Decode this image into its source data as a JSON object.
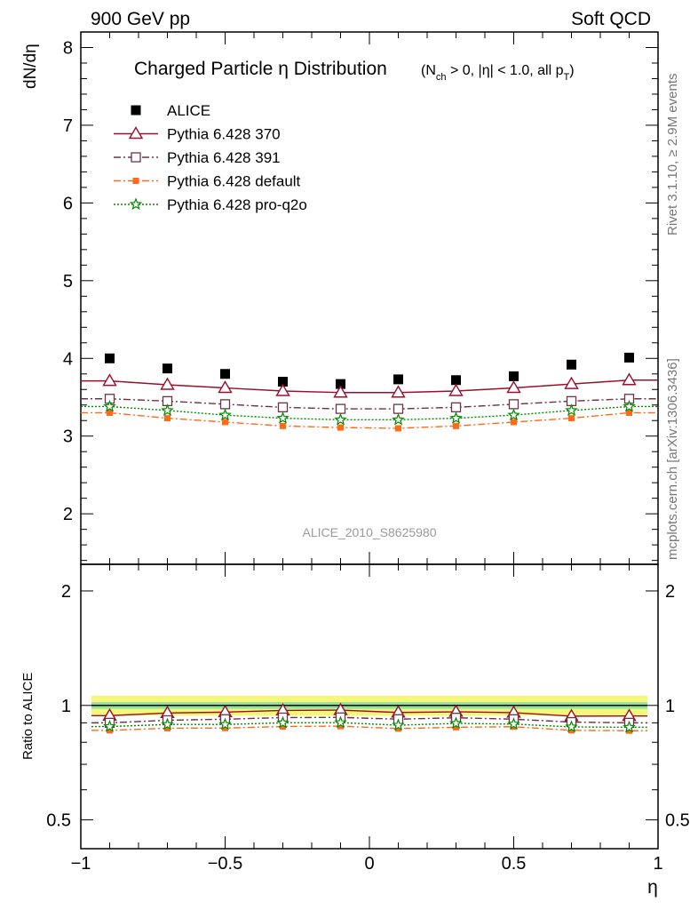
{
  "header": {
    "left": "900 GeV pp",
    "right": "Soft QCD"
  },
  "side": {
    "rivet": "Rivet 3.1.10, ≥ 2.9M events",
    "source": "mcplots.cern.ch [arXiv:1306.3436]"
  },
  "title": {
    "main": "Charged Particle η Distribution",
    "cuts": "(N_ch > 0, |η| < 1.0, all p_T)"
  },
  "watermark": "ALICE_2010_S8625980",
  "axes": {
    "top_ylabel": "dN/dη",
    "bottom_ylabel": "Ratio to ALICE",
    "xlabel": "η"
  },
  "chart_data": [
    {
      "type": "scatter",
      "panel": "main",
      "x": [
        -0.9,
        -0.7,
        -0.5,
        -0.3,
        -0.1,
        0.1,
        0.3,
        0.5,
        0.7,
        0.9
      ],
      "xlim": [
        -1.0,
        1.0
      ],
      "ylim": [
        1.35,
        8.2
      ],
      "xticks": [
        -1,
        -0.5,
        0,
        0.5,
        1
      ],
      "xtick_labels": [
        "−1",
        "−0.5",
        "0",
        "0.5",
        "1"
      ],
      "yticks": [
        2,
        3,
        4,
        5,
        6,
        7,
        8
      ],
      "ytick_labels": [
        "2",
        "3",
        "4",
        "5",
        "6",
        "7",
        "8"
      ],
      "legend_position": "top-left",
      "series": [
        {
          "name": "ALICE",
          "marker": "square-filled",
          "line": "none",
          "color": "#000000",
          "values": [
            4.0,
            3.87,
            3.8,
            3.7,
            3.67,
            3.73,
            3.72,
            3.77,
            3.92,
            4.01
          ]
        },
        {
          "name": "Pythia 6.428 370",
          "marker": "triangle-open",
          "line": "solid",
          "color": "#99102a",
          "values": [
            3.71,
            3.66,
            3.62,
            3.58,
            3.56,
            3.56,
            3.58,
            3.62,
            3.67,
            3.72
          ]
        },
        {
          "name": "Pythia 6.428 391",
          "marker": "square-open",
          "line": "dashdot",
          "color": "#6b3346",
          "values": [
            3.48,
            3.45,
            3.41,
            3.37,
            3.35,
            3.35,
            3.37,
            3.41,
            3.45,
            3.48
          ]
        },
        {
          "name": "Pythia 6.428 default",
          "marker": "square-filled-small",
          "line": "dashdot",
          "color": "#ff6a1a",
          "values": [
            3.3,
            3.23,
            3.18,
            3.13,
            3.11,
            3.1,
            3.13,
            3.18,
            3.23,
            3.3
          ]
        },
        {
          "name": "Pythia 6.428 pro-q2o",
          "marker": "star",
          "line": "dotted",
          "color": "#008a00",
          "values": [
            3.38,
            3.33,
            3.27,
            3.23,
            3.21,
            3.21,
            3.23,
            3.27,
            3.33,
            3.38
          ]
        }
      ]
    },
    {
      "type": "line",
      "panel": "ratio",
      "x": [
        -0.9,
        -0.7,
        -0.5,
        -0.3,
        -0.1,
        0.1,
        0.3,
        0.5,
        0.7,
        0.9
      ],
      "xlim": [
        -1.0,
        1.0
      ],
      "ylim": [
        0.42,
        2.35
      ],
      "yticks": [
        0.5,
        1,
        2
      ],
      "ytick_labels": [
        "0.5",
        "1",
        "2"
      ],
      "reference_band": {
        "center": 1.0,
        "inner": 0.02,
        "outer": 0.06
      },
      "series": [
        {
          "name": "Pythia 6.428 370",
          "values": [
            0.94,
            0.955,
            0.96,
            0.97,
            0.972,
            0.958,
            0.962,
            0.957,
            0.937,
            0.938
          ]
        },
        {
          "name": "Pythia 6.428 391",
          "values": [
            0.9,
            0.914,
            0.92,
            0.929,
            0.93,
            0.92,
            0.928,
            0.92,
            0.904,
            0.9
          ]
        },
        {
          "name": "Pythia 6.428 default",
          "values": [
            0.86,
            0.871,
            0.872,
            0.88,
            0.882,
            0.869,
            0.876,
            0.879,
            0.86,
            0.858
          ]
        },
        {
          "name": "Pythia 6.428 pro-q2o",
          "values": [
            0.88,
            0.891,
            0.891,
            0.9,
            0.901,
            0.887,
            0.897,
            0.893,
            0.878,
            0.876
          ]
        }
      ]
    }
  ]
}
